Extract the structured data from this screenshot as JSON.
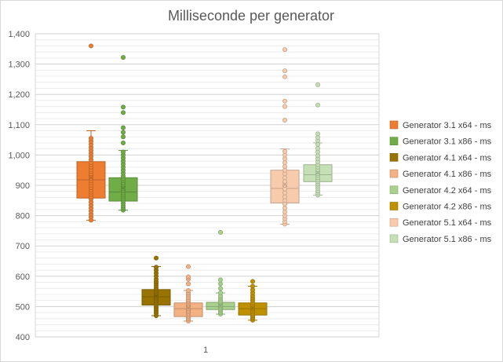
{
  "chart_data": {
    "type": "box",
    "title": "Milliseconde per generator",
    "categories": [
      "1"
    ],
    "ylim": [
      400,
      1400
    ],
    "y_tick_step": 100,
    "y_tick_labels": [
      "400",
      "500",
      "600",
      "700",
      "800",
      "900",
      "1,000",
      "1,100",
      "1,200",
      "1,300",
      "1,400"
    ],
    "grid": true,
    "legend_position": "right",
    "series": [
      {
        "name": "Generator 3.1 x64 - ms",
        "color": "#ED7D31",
        "whisker_low": 785,
        "q1": 858,
        "median": 918,
        "q3": 978,
        "whisker_high": 1080,
        "mean": 925,
        "points": [
          785,
          795,
          805,
          815,
          825,
          835,
          845,
          855,
          862,
          870,
          878,
          885,
          892,
          900,
          908,
          915,
          922,
          930,
          938,
          945,
          952,
          960,
          968,
          975,
          985,
          995,
          1005,
          1015,
          1025,
          1035,
          1045,
          1055,
          1360
        ]
      },
      {
        "name": "Generator 3.1 x86 - ms",
        "color": "#70AD47",
        "whisker_low": 818,
        "q1": 848,
        "median": 878,
        "q3": 925,
        "whisker_high": 1015,
        "mean": 890,
        "points": [
          818,
          825,
          832,
          840,
          848,
          855,
          862,
          868,
          875,
          882,
          888,
          895,
          902,
          908,
          915,
          922,
          930,
          940,
          950,
          960,
          970,
          980,
          990,
          1000,
          1010,
          1040,
          1060,
          1075,
          1090,
          1140,
          1158,
          1322
        ]
      },
      {
        "name": "Generator 4.1 x64 - ms",
        "color": "#997300",
        "whisker_low": 470,
        "q1": 505,
        "median": 532,
        "q3": 556,
        "whisker_high": 632,
        "mean": 534,
        "points": [
          470,
          478,
          485,
          492,
          498,
          505,
          512,
          518,
          525,
          530,
          535,
          540,
          545,
          550,
          555,
          560,
          568,
          575,
          582,
          590,
          600,
          610,
          620,
          630,
          660
        ]
      },
      {
        "name": "Generator 4.1 x86 - ms",
        "color": "#F4B183",
        "whisker_low": 452,
        "q1": 467,
        "median": 493,
        "q3": 512,
        "whisker_high": 553,
        "mean": 496,
        "points": [
          452,
          458,
          463,
          468,
          473,
          478,
          483,
          488,
          493,
          498,
          503,
          508,
          513,
          518,
          523,
          530,
          538,
          545,
          553,
          575,
          590,
          598,
          632
        ]
      },
      {
        "name": "Generator 4.2 x64 - ms",
        "color": "#A9D18E",
        "whisker_low": 475,
        "q1": 490,
        "median": 500,
        "q3": 514,
        "whisker_high": 545,
        "mean": 503,
        "points": [
          475,
          480,
          485,
          490,
          495,
          500,
          505,
          510,
          515,
          520,
          528,
          535,
          545,
          560,
          575,
          588,
          745
        ]
      },
      {
        "name": "Generator 4.2 x86 - ms",
        "color": "#BF9000",
        "whisker_low": 455,
        "q1": 472,
        "median": 493,
        "q3": 512,
        "whisker_high": 567,
        "mean": 495,
        "points": [
          455,
          460,
          465,
          470,
          476,
          482,
          488,
          494,
          500,
          506,
          512,
          520,
          528,
          536,
          545,
          555,
          567,
          583
        ]
      },
      {
        "name": "Generator 5.1 x64 - ms",
        "color": "#F8CBAD",
        "whisker_low": 772,
        "q1": 842,
        "median": 890,
        "q3": 950,
        "whisker_high": 1020,
        "mean": 903,
        "points": [
          772,
          780,
          790,
          800,
          812,
          825,
          838,
          850,
          862,
          875,
          888,
          900,
          912,
          925,
          938,
          950,
          962,
          975,
          988,
          1000,
          1012,
          1115,
          1160,
          1178,
          1258,
          1278,
          1348
        ]
      },
      {
        "name": "Generator 5.1 x86 - ms",
        "color": "#C5E0B4",
        "whisker_low": 868,
        "q1": 912,
        "median": 935,
        "q3": 968,
        "whisker_high": 1040,
        "mean": 942,
        "points": [
          868,
          875,
          882,
          890,
          898,
          905,
          912,
          918,
          925,
          932,
          938,
          945,
          952,
          960,
          968,
          978,
          988,
          998,
          1010,
          1022,
          1035,
          1048,
          1058,
          1070,
          1165,
          1232
        ]
      }
    ]
  }
}
